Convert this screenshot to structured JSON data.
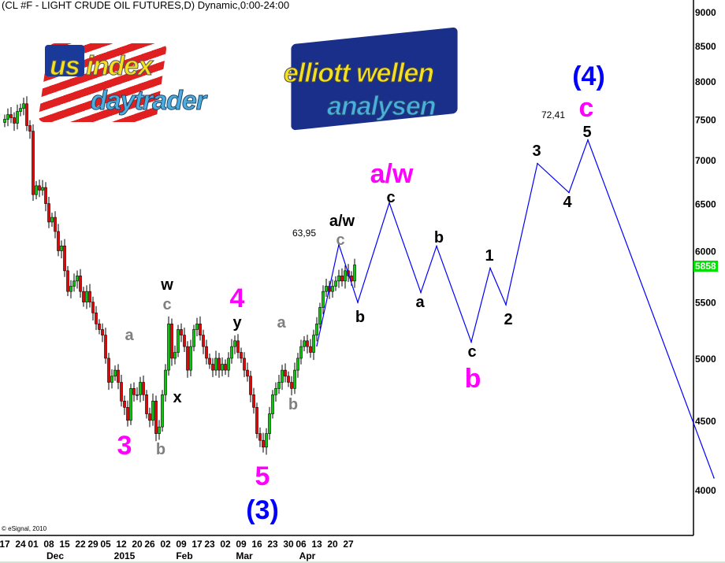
{
  "title": "(CL #F - LIGHT CRUDE OIL FUTURES,D) Dynamic,0:00-24:00",
  "copyright": "© eSignal, 2010",
  "last_price_badge": "5858",
  "logos": {
    "left": {
      "line1": "us index",
      "line2": "daytrader"
    },
    "right": {
      "line1": "elliott wellen",
      "line2": "analysen"
    }
  },
  "colors": {
    "up": "#00cc00",
    "down": "#ee0000",
    "projection": "#0000ff",
    "wave_major": "#ff00ff",
    "wave_minor": "#808080",
    "degree": "#0000ff",
    "badge": "#00e000"
  },
  "annotations": [
    {
      "text": "(4)"
    },
    {
      "text": "c"
    },
    {
      "text": "72,41"
    },
    {
      "text": "5"
    },
    {
      "text": "3"
    },
    {
      "text": "4"
    },
    {
      "text": "a/w"
    },
    {
      "text": "c"
    },
    {
      "text": "b"
    },
    {
      "text": "a"
    },
    {
      "text": "1"
    },
    {
      "text": "2"
    },
    {
      "text": "c"
    },
    {
      "text": "b"
    },
    {
      "text": "63,95"
    },
    {
      "text": "a/w"
    },
    {
      "text": "c"
    },
    {
      "text": "b"
    },
    {
      "text": "w"
    },
    {
      "text": "c"
    },
    {
      "text": "x"
    },
    {
      "text": "4"
    },
    {
      "text": "y"
    },
    {
      "text": "a"
    },
    {
      "text": "b"
    },
    {
      "text": "a"
    },
    {
      "text": "3"
    },
    {
      "text": "b"
    },
    {
      "text": "5"
    },
    {
      "text": "(3)"
    }
  ],
  "chart_data": {
    "type": "candlestick",
    "title": "(CL #F - LIGHT CRUDE OIL FUTURES,D) Dynamic,0:00-24:00",
    "y_scale": "log",
    "ylim": [
      3700,
      9200
    ],
    "y_ticks": [
      9000,
      8500,
      8000,
      7500,
      7000,
      6500,
      6000,
      5500,
      5000,
      4500,
      4000
    ],
    "first_date": "2014-11-17",
    "holidays": [
      "2014-11-27",
      "2014-12-25",
      "2015-01-01",
      "2015-01-19",
      "2015-02-16",
      "2015-04-03"
    ],
    "closes": [
      7500,
      7560,
      7520,
      7450,
      7600,
      7640,
      7700,
      7420,
      7350,
      6600,
      6700,
      6650,
      6680,
      6500,
      6300,
      6350,
      6200,
      6000,
      6050,
      5800,
      5600,
      5650,
      5700,
      5750,
      5600,
      5500,
      5600,
      5500,
      5400,
      5300,
      5250,
      5200,
      5000,
      4800,
      4850,
      4900,
      4800,
      4650,
      4600,
      4500,
      4750,
      4700,
      4700,
      4800,
      4700,
      4550,
      4500,
      4650,
      4400,
      4450,
      4700,
      4900,
      5300,
      5000,
      5050,
      5250,
      5200,
      5100,
      4900,
      5100,
      5250,
      5300,
      5200,
      5100,
      5000,
      4950,
      4900,
      5000,
      4900,
      4950,
      4900,
      5000,
      5100,
      5150,
      5050,
      5000,
      4900,
      4850,
      4700,
      4600,
      4400,
      4350,
      4300,
      4400,
      4550,
      4700,
      4750,
      4800,
      4900,
      4850,
      4800,
      4750,
      4900,
      5000,
      5100,
      5150,
      5100,
      5050,
      5200,
      5300,
      5450,
      5600,
      5650,
      5600,
      5650,
      5700,
      5750,
      5700,
      5800,
      5750,
      5700,
      5858
    ],
    "x_ticks": [
      {
        "date": "2014-11-17",
        "label": "17"
      },
      {
        "date": "2014-11-24",
        "label": "24"
      },
      {
        "date": "2014-12-01",
        "label": "01"
      },
      {
        "date": "2014-12-08",
        "label": "08"
      },
      {
        "date": "2014-12-15",
        "label": "15"
      },
      {
        "date": "2014-12-22",
        "label": "22"
      },
      {
        "date": "2014-12-29",
        "label": "29"
      },
      {
        "date": "2015-01-05",
        "label": "05"
      },
      {
        "date": "2015-01-12",
        "label": "12"
      },
      {
        "date": "2015-01-20",
        "label": "20"
      },
      {
        "date": "2015-01-26",
        "label": "26"
      },
      {
        "date": "2015-02-02",
        "label": "02"
      },
      {
        "date": "2015-02-09",
        "label": "09"
      },
      {
        "date": "2015-02-17",
        "label": "17"
      },
      {
        "date": "2015-02-23",
        "label": "23"
      },
      {
        "date": "2015-03-02",
        "label": "02"
      },
      {
        "date": "2015-03-09",
        "label": "09"
      },
      {
        "date": "2015-03-16",
        "label": "16"
      },
      {
        "date": "2015-03-23",
        "label": "23"
      },
      {
        "date": "2015-03-30",
        "label": "30"
      },
      {
        "date": "2015-04-06",
        "label": "06"
      },
      {
        "date": "2015-04-13",
        "label": "13"
      },
      {
        "date": "2015-04-20",
        "label": "20"
      },
      {
        "date": "2015-04-27",
        "label": "27"
      }
    ],
    "x_month_labels": [
      {
        "date": "2014-12-10",
        "label": "Dec"
      },
      {
        "date": "2015-01-13",
        "label": "2015"
      },
      {
        "date": "2015-02-10",
        "label": "Feb"
      },
      {
        "date": "2015-03-10",
        "label": "Mar"
      },
      {
        "date": "2015-04-08",
        "label": "Apr"
      }
    ],
    "projection": [
      {
        "date": "2015-04-13",
        "price": 5106
      },
      {
        "date": "2015-04-22",
        "price": 6064
      },
      {
        "date": "2015-04-30",
        "price": 5497
      },
      {
        "date": "2015-05-14",
        "price": 6509
      },
      {
        "date": "2015-05-28",
        "price": 5590
      },
      {
        "date": "2015-06-04",
        "price": 6048
      },
      {
        "date": "2015-06-19",
        "price": 5140
      },
      {
        "date": "2015-06-29",
        "price": 5826
      },
      {
        "date": "2015-07-06",
        "price": 5475
      },
      {
        "date": "2015-07-20",
        "price": 6958
      },
      {
        "date": "2015-08-03",
        "price": 6623
      },
      {
        "date": "2015-08-11",
        "price": 7241
      },
      {
        "date": "2015-10-06",
        "price": 4081
      }
    ],
    "grid": false
  }
}
